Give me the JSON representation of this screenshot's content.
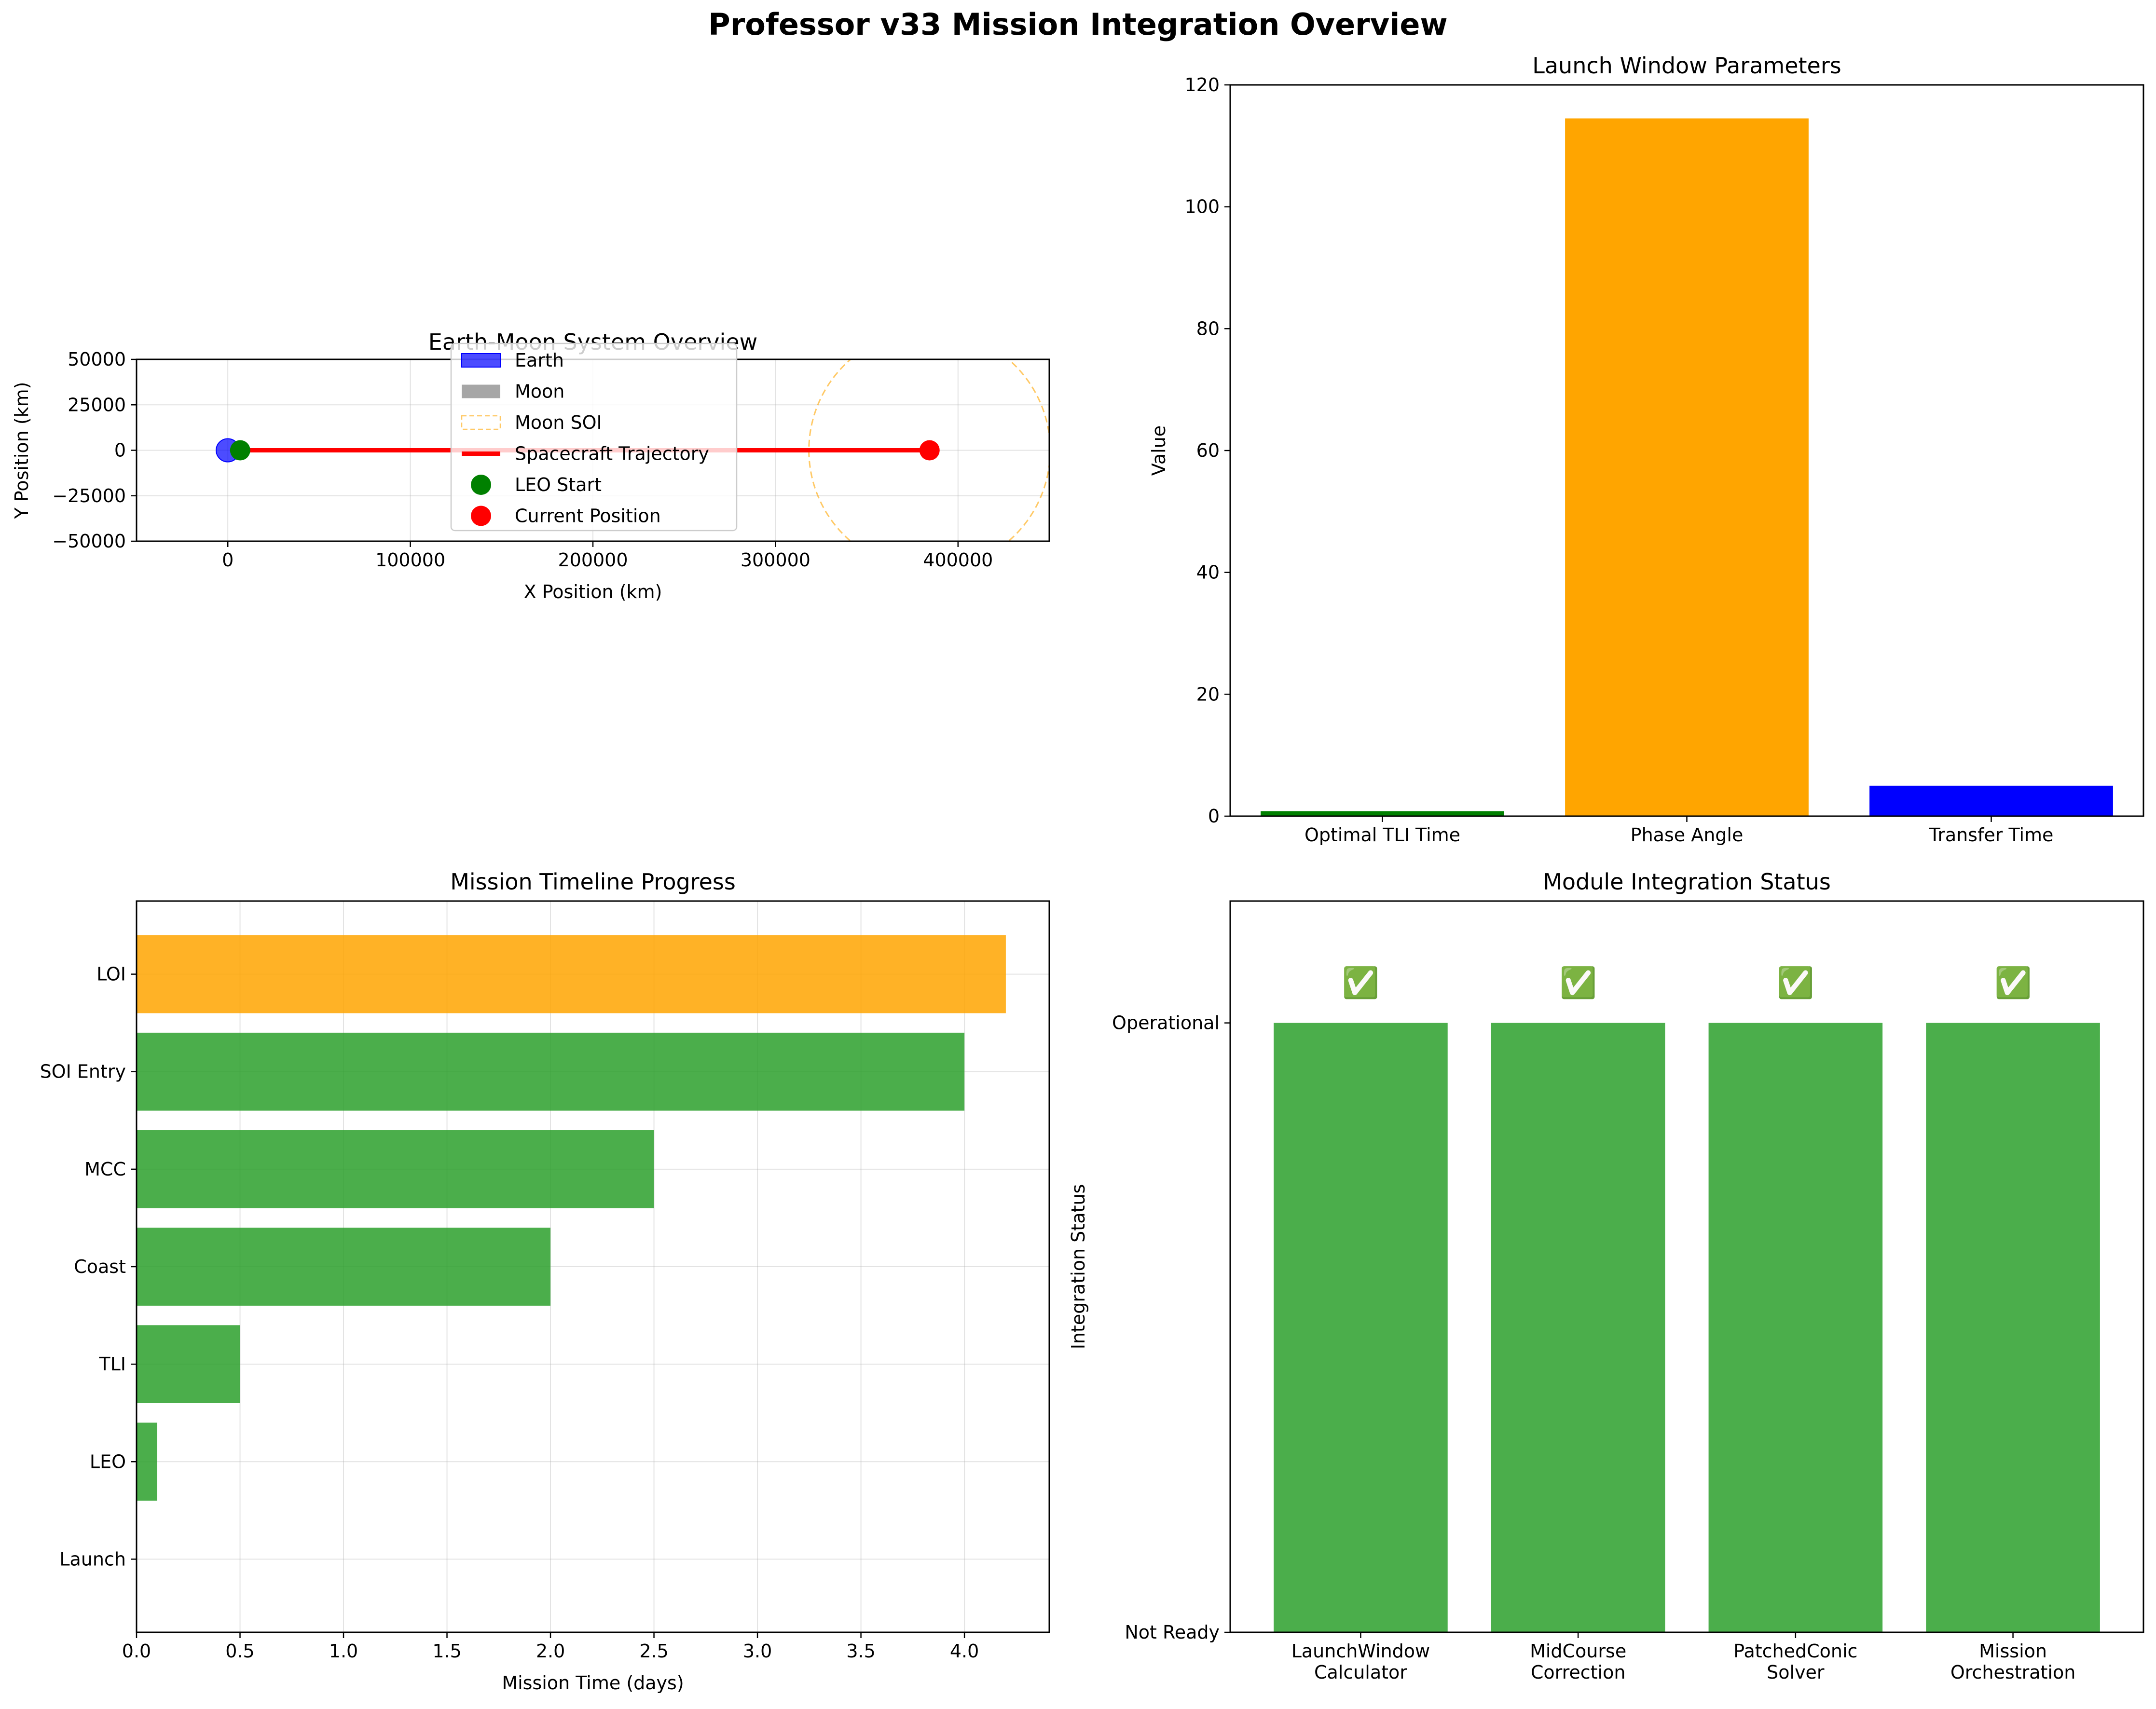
{
  "title": "Professor v33 Mission Integration Overview",
  "chart_data": [
    {
      "id": "earth-moon",
      "type": "scatter",
      "title": "Earth-Moon System Overview",
      "xlabel": "X Position (km)",
      "ylabel": "Y Position (km)",
      "xlim": [
        -50000,
        450000
      ],
      "ylim": [
        -50000,
        50000
      ],
      "xticks": [
        "0",
        "100000",
        "200000",
        "300000",
        "400000"
      ],
      "yticks": [
        "50000",
        "25000",
        "0",
        "−25000",
        "−50000"
      ],
      "grid": true,
      "legend_position": "upper-center",
      "earth": {
        "name": "Earth",
        "x": 0,
        "y": 0,
        "radius": 6371,
        "color": "#0000ff"
      },
      "moon": {
        "name": "Moon",
        "x": 384400,
        "y": 0,
        "radius": 1737,
        "color": "#808080"
      },
      "moon_soi": {
        "name": "Moon SOI",
        "x": 384400,
        "y": 0,
        "radius": 66100,
        "color": "#ffa500"
      },
      "trajectory": {
        "name": "Spacecraft Trajectory",
        "x": [
          6771,
          384400
        ],
        "y": [
          0,
          0
        ],
        "color": "#ff0000"
      },
      "points": [
        {
          "name": "LEO Start",
          "x": 6771,
          "y": 0,
          "color": "#008000"
        },
        {
          "name": "Current Position",
          "x": 384400,
          "y": 0,
          "color": "#ff0000"
        }
      ],
      "legend": [
        "Earth",
        "Moon",
        "Moon SOI",
        "Spacecraft Trajectory",
        "LEO Start",
        "Current Position"
      ]
    },
    {
      "id": "launch-window",
      "type": "bar",
      "title": "Launch Window Parameters",
      "xlabel": "",
      "ylabel": "Value",
      "ylim": [
        0,
        120
      ],
      "yticks": [
        "0",
        "20",
        "40",
        "60",
        "80",
        "100",
        "120"
      ],
      "categories": [
        "Optimal TLI Time",
        "Phase Angle",
        "Transfer Time"
      ],
      "values": [
        0.8,
        114.5,
        5.0
      ],
      "colors": [
        "#008000",
        "#ffa500",
        "#0000ff"
      ]
    },
    {
      "id": "timeline",
      "type": "bar",
      "orientation": "horizontal",
      "title": "Mission Timeline Progress",
      "xlabel": "Mission Time (days)",
      "ylabel": "",
      "xlim": [
        0,
        4.41
      ],
      "xticks": [
        "0.0",
        "0.5",
        "1.0",
        "1.5",
        "2.0",
        "2.5",
        "3.0",
        "3.5",
        "4.0"
      ],
      "grid": true,
      "categories": [
        "Launch",
        "LEO",
        "TLI",
        "Coast",
        "MCC",
        "SOI Entry",
        "LOI"
      ],
      "values": [
        0,
        0.1,
        0.5,
        2.0,
        2.5,
        4.0,
        4.2
      ],
      "colors": [
        "#2ca02c",
        "#2ca02c",
        "#2ca02c",
        "#2ca02c",
        "#2ca02c",
        "#2ca02c",
        "#ffa500"
      ]
    },
    {
      "id": "module-status",
      "type": "bar",
      "title": "Module Integration Status",
      "xlabel": "",
      "ylabel": "Integration Status",
      "ylim": [
        0,
        1.2
      ],
      "yticks": [
        "Not Ready",
        "Operational"
      ],
      "categories": [
        "LaunchWindow\nCalculator",
        "MidCourse\nCorrection",
        "PatchedConic\nSolver",
        "Mission\nOrchestration"
      ],
      "values": [
        1,
        1,
        1,
        1
      ],
      "colors": [
        "#2ca02c",
        "#2ca02c",
        "#2ca02c",
        "#2ca02c"
      ],
      "annotations": [
        "✅",
        "✅",
        "✅",
        "✅"
      ]
    }
  ]
}
